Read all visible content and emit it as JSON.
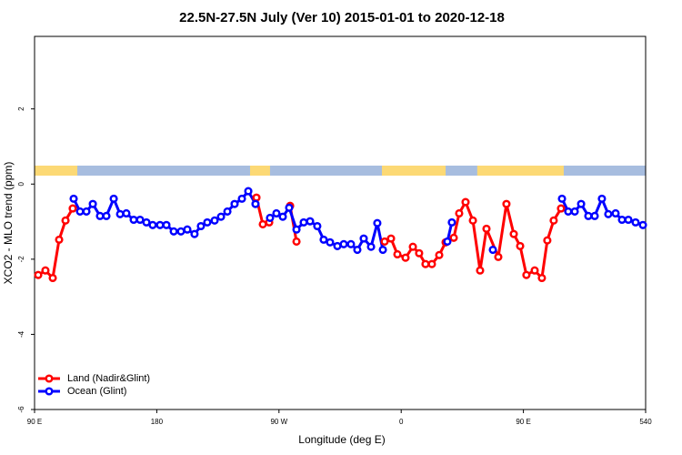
{
  "chart_data": {
    "type": "line",
    "title": "22.5N-27.5N July (Ver 10)   2015-01-01 to 2020-12-18",
    "x_label": "Longitude (deg E)",
    "y_label": "XCO2 - MLO trend (ppm)",
    "xlim": [
      90,
      540
    ],
    "ylim": [
      -6,
      3.93
    ],
    "xticks": [
      {
        "value": 90,
        "label": "90 E"
      },
      180,
      {
        "value": 270,
        "label": "90 W"
      },
      {
        "value": 360,
        "label": "0"
      },
      {
        "value": 450,
        "label": "90 E"
      },
      540
    ],
    "yticks": [
      -6,
      -4,
      -2,
      0,
      2
    ],
    "legend": "bottomleft",
    "land_color": "#fcd975",
    "ocean_color": "#a7bddf",
    "land_spans": [
      [
        90,
        121.5
      ],
      [
        248.7,
        263.4
      ],
      [
        345.8,
        392.7
      ],
      [
        416,
        479.7
      ]
    ],
    "series": [
      {
        "name": "Land (Nadir&Glint)",
        "color": "#ff0000",
        "x": [
          92.7,
          98.0,
          103.4,
          108.1,
          112.8,
          118.1,
          null,
          253.4,
          258.1,
          262.8,
          null,
          278.2,
          282.9,
          null,
          347.8,
          352.5,
          357.2,
          363.2,
          368.6,
          373.2,
          377.9,
          382.6,
          388.0,
          392.7,
          398.7,
          402.7,
          407.4,
          412.8,
          418.1,
          422.8,
          431.5,
          437.5,
          442.9,
          447.6,
          452.2,
          458.3,
          463.6,
          467.6,
          472.3,
          477.7
        ],
        "values": [
          -2.42,
          -2.3,
          -2.5,
          -1.48,
          -0.97,
          -0.65,
          null,
          -0.36,
          -1.07,
          -1.02,
          null,
          -0.58,
          -1.53,
          null,
          -1.53,
          -1.45,
          -1.87,
          -1.96,
          -1.67,
          -1.84,
          -2.13,
          -2.13,
          -1.89,
          -1.55,
          -1.43,
          -0.78,
          -0.48,
          -0.97,
          -2.3,
          -1.19,
          -1.94,
          -0.53,
          -1.33,
          -1.65,
          -2.42,
          -2.3,
          -2.5,
          -1.5,
          -0.97,
          -0.65
        ]
      },
      {
        "name": "Ocean (Glint)",
        "color": "#0000ff",
        "x": [
          118.8,
          123.5,
          128.2,
          132.9,
          138.2,
          142.9,
          148.3,
          153.0,
          157.6,
          163.0,
          167.7,
          172.4,
          177.0,
          182.4,
          187.1,
          192.5,
          197.8,
          202.5,
          207.8,
          212.5,
          217.2,
          222.6,
          227.3,
          232.0,
          237.3,
          242.7,
          247.4,
          252.7,
          null,
          263.4,
          268.1,
          272.8,
          277.5,
          282.9,
          288.2,
          292.9,
          298.2,
          302.9,
          307.6,
          313.0,
          317.7,
          323.0,
          327.7,
          332.4,
          337.8,
          342.4,
          346.5,
          null,
          394.0,
          397.3,
          null,
          427.5,
          null,
          478.4,
          483.0,
          487.8,
          492.5,
          497.8,
          502.5,
          507.8,
          512.5,
          517.9,
          522.6,
          527.3,
          532.6,
          538.0
        ],
        "values": [
          -0.39,
          -0.73,
          -0.73,
          -0.53,
          -0.85,
          -0.85,
          -0.39,
          -0.8,
          -0.78,
          -0.95,
          -0.95,
          -1.02,
          -1.09,
          -1.09,
          -1.09,
          -1.26,
          -1.26,
          -1.21,
          -1.33,
          -1.12,
          -1.02,
          -0.97,
          -0.87,
          -0.73,
          -0.53,
          -0.39,
          -0.19,
          -0.53,
          null,
          -0.9,
          -0.78,
          -0.87,
          -0.63,
          -1.21,
          -1.02,
          -0.99,
          -1.12,
          -1.48,
          -1.55,
          -1.65,
          -1.6,
          -1.6,
          -1.75,
          -1.45,
          -1.67,
          -1.04,
          -1.75,
          null,
          -1.53,
          -1.02,
          null,
          -1.75,
          null,
          -0.39,
          -0.73,
          -0.73,
          -0.53,
          -0.85,
          -0.85,
          -0.39,
          -0.8,
          -0.78,
          -0.95,
          -0.95,
          -1.02,
          -1.09
        ]
      }
    ]
  }
}
